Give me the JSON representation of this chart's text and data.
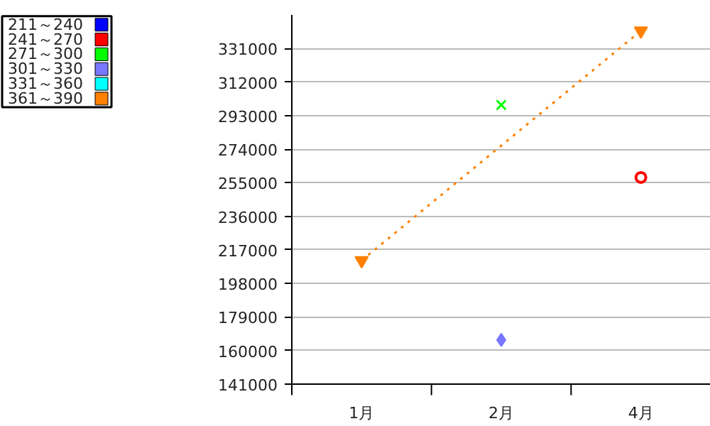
{
  "chart_data": {
    "type": "scatter",
    "categories": [
      "1月",
      "2月",
      "4月"
    ],
    "series": [
      {
        "name": "211～240",
        "color": "#0000ff",
        "values": [
          null,
          null,
          null
        ],
        "marker": "square"
      },
      {
        "name": "241～270",
        "color": "#ff0000",
        "values": [
          null,
          null,
          258000
        ],
        "marker": "circle"
      },
      {
        "name": "271～300",
        "color": "#00ff00",
        "values": [
          null,
          299000,
          null
        ],
        "marker": "cross"
      },
      {
        "name": "301～330",
        "color": "#7777ff",
        "values": [
          null,
          166000,
          null
        ],
        "marker": "diamond"
      },
      {
        "name": "331～360",
        "color": "#00ffff",
        "values": [
          null,
          null,
          null
        ],
        "marker": "square"
      },
      {
        "name": "361～390",
        "color": "#ff8000",
        "values": [
          211000,
          null,
          341000
        ],
        "marker": "triangle",
        "type": "line",
        "line_style": "dotted"
      }
    ],
    "ylim": [
      141000,
      350000
    ],
    "yticks": [
      141000,
      160000,
      179000,
      198000,
      217000,
      236000,
      255000,
      274000,
      293000,
      312000,
      331000
    ],
    "grid": "y",
    "legend": "top left"
  }
}
